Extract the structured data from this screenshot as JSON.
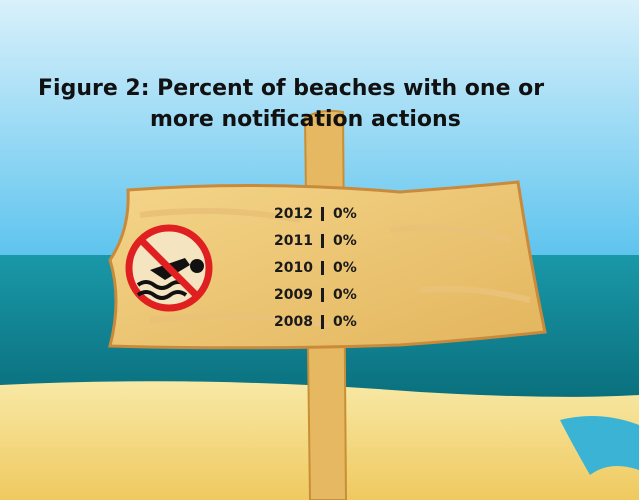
{
  "title_lines": [
    "Figure 2:  Percent of beaches with one or",
    "more notification actions"
  ],
  "rows": [
    {
      "year": "2012",
      "value": "0%"
    },
    {
      "year": "2011",
      "value": "0%"
    },
    {
      "year": "2010",
      "value": "0%"
    },
    {
      "year": "2009",
      "value": "0%"
    },
    {
      "year": "2008",
      "value": "0%"
    }
  ]
}
